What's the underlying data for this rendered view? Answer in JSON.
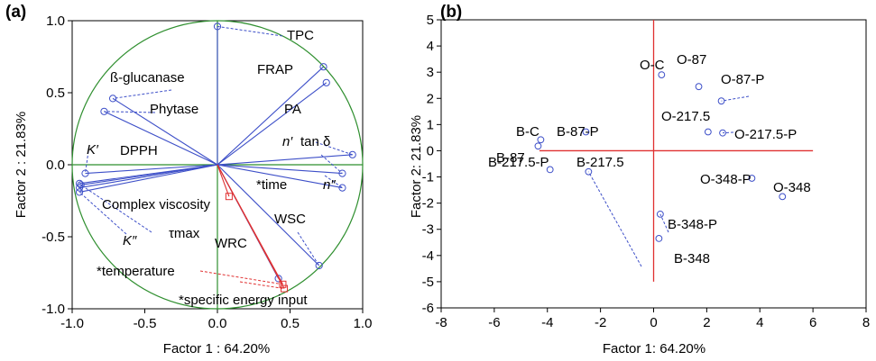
{
  "colors": {
    "loading": "#3d4fc8",
    "supplementary": "#e03030",
    "circle": "#2f8f2f",
    "axis_zero_a": "#2f8f2f",
    "axis_zero_b": "#e03030",
    "point": "#3d4fc8"
  },
  "chart_data": [
    {
      "panel": "(a)",
      "type": "scatter",
      "subtype": "pca-loading-plot",
      "xlabel": "Factor 1 : 64.20%",
      "ylabel": "Factor 2 : 21.83%",
      "xlim": [
        -1.0,
        1.0
      ],
      "ylim": [
        -1.0,
        1.0
      ],
      "xticks": [
        "-1.0",
        "-0.5",
        "0.0",
        "0.5",
        "1.0"
      ],
      "yticks": [
        "1.0",
        "0.5",
        "0.0",
        "-0.5",
        "-1.0"
      ],
      "unit_circle": true,
      "grid": false,
      "series": [
        {
          "role": "active",
          "points": [
            {
              "label": "TPC",
              "x": 0.0,
              "y": 0.96
            },
            {
              "label": "FRAP",
              "x": 0.73,
              "y": 0.68
            },
            {
              "label": "PA",
              "x": 0.75,
              "y": 0.57
            },
            {
              "label": "ß-glucanase",
              "x": -0.72,
              "y": 0.46
            },
            {
              "label": "Phytase",
              "x": -0.78,
              "y": 0.37
            },
            {
              "label": "n′",
              "x": 0.93,
              "y": 0.07
            },
            {
              "label": "tan δ",
              "x": 0.86,
              "y": -0.06
            },
            {
              "label": "n″",
              "x": 0.86,
              "y": -0.16
            },
            {
              "label": "K′",
              "x": -0.91,
              "y": -0.06
            },
            {
              "label": "DPPH",
              "x": -0.95,
              "y": -0.13
            },
            {
              "label": "Complex viscosity",
              "x": -0.95,
              "y": -0.16
            },
            {
              "label": "K″",
              "x": -0.95,
              "y": -0.19
            },
            {
              "label": "τmax",
              "x": -0.94,
              "y": -0.14
            },
            {
              "label": "WSC",
              "x": 0.7,
              "y": -0.7
            },
            {
              "label": "WRC",
              "x": 0.42,
              "y": -0.79
            }
          ]
        },
        {
          "role": "supplementary",
          "points": [
            {
              "label": "*time",
              "x": 0.08,
              "y": -0.22
            },
            {
              "label": "*temperature",
              "x": 0.45,
              "y": -0.83
            },
            {
              "label": "*specific energy input",
              "x": 0.46,
              "y": -0.86
            }
          ]
        }
      ],
      "text_labels": {
        "TPC": "TPC",
        "FRAP": "FRAP",
        "PA": "PA",
        "bglu": "ß-glucanase",
        "phytase": "Phytase",
        "n1": "n′",
        "tand": "tan δ",
        "n2": "n″",
        "K1": "K′",
        "DPPH": "DPPH",
        "cv": "Complex viscosity",
        "K2": "K″",
        "tau": "τmax",
        "WSC": "WSC",
        "WRC": "WRC",
        "time": "*time",
        "temp": "*temperature",
        "sei": "*specific energy input"
      }
    },
    {
      "panel": "(b)",
      "type": "scatter",
      "subtype": "pca-score-plot",
      "xlabel": "Factor 1: 64.20%",
      "ylabel": "Factor 2: 21.83%",
      "xlim": [
        -8,
        8
      ],
      "ylim": [
        -6,
        5
      ],
      "xticks": [
        "-8",
        "-6",
        "-4",
        "-2",
        "0",
        "2",
        "4",
        "6",
        "8"
      ],
      "yticks": [
        "5",
        "4",
        "3",
        "2",
        "1",
        "0",
        "-1",
        "-2",
        "-3",
        "-4",
        "-5",
        "-6"
      ],
      "grid": false,
      "points": [
        {
          "label": "O-C",
          "x": 0.3,
          "y": 2.9
        },
        {
          "label": "O-87",
          "x": 1.7,
          "y": 2.45
        },
        {
          "label": "O-87-P",
          "x": 2.55,
          "y": 1.9
        },
        {
          "label": "O-217.5",
          "x": 2.05,
          "y": 0.72
        },
        {
          "label": "O-217.5-P",
          "x": 2.6,
          "y": 0.68
        },
        {
          "label": "O-348-P",
          "x": 3.7,
          "y": -1.05
        },
        {
          "label": "O-348",
          "x": 4.85,
          "y": -1.75
        },
        {
          "label": "B-C",
          "x": -4.25,
          "y": 0.42
        },
        {
          "label": "B-87",
          "x": -4.35,
          "y": 0.18
        },
        {
          "label": "B-87-P",
          "x": -2.55,
          "y": 0.72
        },
        {
          "label": "B-217.5-P",
          "x": -3.9,
          "y": -0.72
        },
        {
          "label": "B-217.5",
          "x": -2.45,
          "y": -0.8
        },
        {
          "label": "B-348-P",
          "x": 0.25,
          "y": -2.42
        },
        {
          "label": "B-348",
          "x": 0.2,
          "y": -3.35
        }
      ]
    }
  ]
}
